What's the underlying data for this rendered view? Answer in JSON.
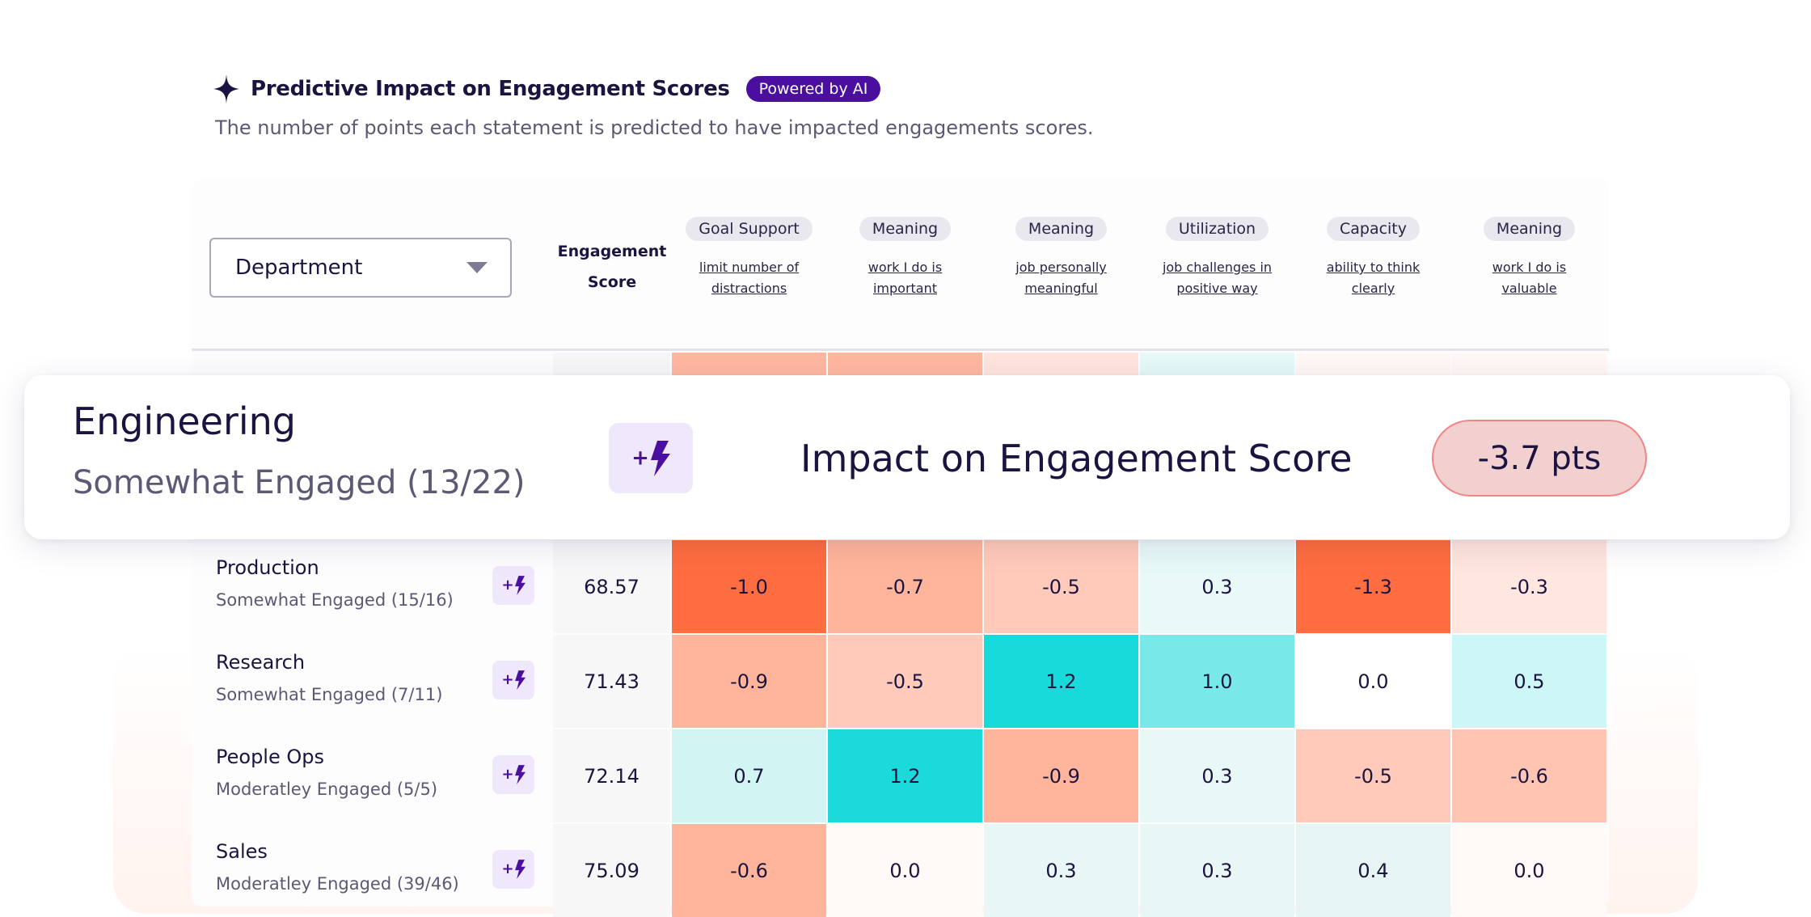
{
  "header": {
    "title": "Predictive Impact on Engagement Scores",
    "badge": "Powered by AI",
    "subtitle": "The number of points each statement is predicted to have impacted engagements scores."
  },
  "table": {
    "group_by": "Department",
    "score_header_line1": "Engagement",
    "score_header_line2": "Score",
    "columns": [
      {
        "category": "Goal Support",
        "line1": "limit number of",
        "line2": "distractions"
      },
      {
        "category": "Meaning",
        "line1": "work I do is",
        "line2": "important"
      },
      {
        "category": "Meaning",
        "line1": "job personally",
        "line2": "meaningful"
      },
      {
        "category": "Utilization",
        "line1": "job challenges in",
        "line2": "positive way"
      },
      {
        "category": "Capacity",
        "line1": "ability to think",
        "line2": "clearly"
      },
      {
        "category": "Meaning",
        "line1": "work I do is",
        "line2": "valuable"
      }
    ],
    "hidden_row_colors": [
      "#f7f7f8",
      "#ffb8a0",
      "#ffb8a0",
      "#ffe5dd",
      "#e6f9f8",
      "#fff8f6",
      "#fff8f6"
    ],
    "rows": [
      {
        "name": "Production",
        "status": "Somewhat Engaged (15/16)",
        "score": "68.57",
        "cells": [
          {
            "v": "-1.0",
            "c": "#ff6d40"
          },
          {
            "v": "-0.7",
            "c": "#ffb59c"
          },
          {
            "v": "-0.5",
            "c": "#ffcaba"
          },
          {
            "v": "0.3",
            "c": "#e8f9f8"
          },
          {
            "v": "-1.3",
            "c": "#ff6d40"
          },
          {
            "v": "-0.3",
            "c": "#ffe6de"
          }
        ]
      },
      {
        "name": "Research",
        "status": "Somewhat Engaged (7/11)",
        "score": "71.43",
        "cells": [
          {
            "v": "-0.9",
            "c": "#ffb59c"
          },
          {
            "v": "-0.5",
            "c": "#ffcaba"
          },
          {
            "v": "1.2",
            "c": "#18dada"
          },
          {
            "v": "1.0",
            "c": "#78e8e8"
          },
          {
            "v": "0.0",
            "c": "#ffffff"
          },
          {
            "v": "0.5",
            "c": "#cdf6f6"
          }
        ]
      },
      {
        "name": "People Ops",
        "status": "Moderatley Engaged (5/5)",
        "score": "72.14",
        "cells": [
          {
            "v": "0.7",
            "c": "#d2f5f4"
          },
          {
            "v": "1.2",
            "c": "#1cdad9"
          },
          {
            "v": "-0.9",
            "c": "#ffb59c"
          },
          {
            "v": "0.3",
            "c": "#e8f8f7"
          },
          {
            "v": "-0.5",
            "c": "#ffcaba"
          },
          {
            "v": "-0.6",
            "c": "#ffc5b2"
          }
        ]
      },
      {
        "name": "Sales",
        "status": "Moderatley Engaged (39/46)",
        "score": "75.09",
        "cells": [
          {
            "v": "-0.6",
            "c": "#ffb59c"
          },
          {
            "v": "0.0",
            "c": "#fff9f7"
          },
          {
            "v": "0.3",
            "c": "#e8f6f5"
          },
          {
            "v": "0.3",
            "c": "#e8f6f5"
          },
          {
            "v": "0.4",
            "c": "#e6f5f4"
          },
          {
            "v": "0.0",
            "c": "#fff9f7"
          }
        ]
      }
    ]
  },
  "popup": {
    "name": "Engineering",
    "status": "Somewhat Engaged (13/22)",
    "icon": "plus-lightning-icon",
    "label": "Impact on Engagement Score",
    "value": "-3.7 pts",
    "value_bg": "#f2d0d0",
    "value_border": "#f08585"
  }
}
